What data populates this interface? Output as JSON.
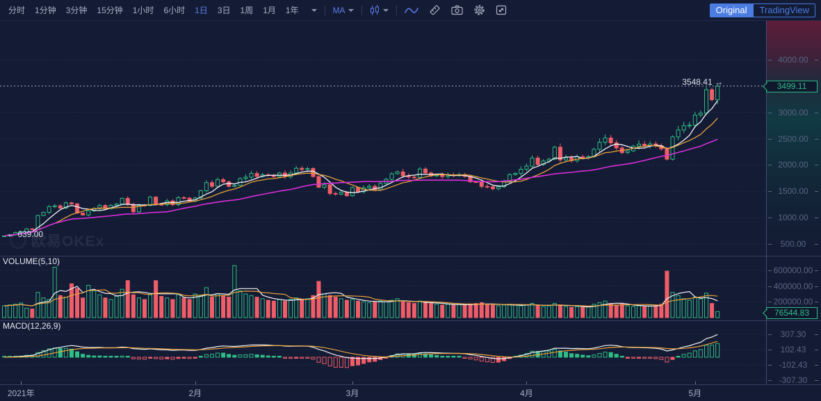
{
  "toolbar": {
    "intervals": [
      "分时",
      "1分钟",
      "3分钟",
      "15分钟",
      "1小时",
      "6小时",
      "1日",
      "3日",
      "1周",
      "1月",
      "1年"
    ],
    "selected_interval": "1日",
    "ma_label": "MA",
    "mode": {
      "original": "Original",
      "tradingview": "TradingView",
      "selected": "Original"
    },
    "icons": [
      "candle-type-icon",
      "line-chart-icon",
      "draw-tools-icon",
      "camera-icon",
      "gear-icon",
      "fullscreen-icon"
    ]
  },
  "main_chart": {
    "high_marker": "3548.41 →",
    "low_marker": "← 639.00",
    "current_price_label": "3499.11",
    "watermark": "欧易OKEx"
  },
  "volume_pane": {
    "label": "VOLUME(5,10)",
    "current_label": "76544.83"
  },
  "macd_pane": {
    "label": "MACD(12,26,9)"
  },
  "colors": {
    "bg": "#141b34",
    "up": "#2ebd85",
    "down": "#ee5d68",
    "ma5": "#f2f3f7",
    "ma10": "#e7a23b",
    "ma30": "#d92fd9",
    "accent_blue": "#4a7ce2",
    "badge_green": "#2ebd85",
    "grid": "#7d88a8",
    "price_line": "#aeb6c8"
  },
  "chart_data": {
    "type": "candlestick",
    "panes": [
      "price+MA",
      "volume+MA",
      "MACD"
    ],
    "x_axis_labels": [
      "2021年",
      "2月",
      "3月",
      "4月",
      "5月"
    ],
    "month_tick_indices": [
      3,
      34,
      62,
      93,
      123
    ],
    "price_axis_ticks": [
      4000,
      3000,
      2500,
      2000,
      1500,
      1000,
      500
    ],
    "volume_axis_ticks": [
      600000,
      400000,
      200000
    ],
    "macd_axis_ticks": [
      307.3,
      102.43,
      -102.43,
      -307.3
    ],
    "current_price": 3499.11,
    "high": 3548.41,
    "low": 639.0,
    "current_volume": 76544.83,
    "overlays": [
      "MA5",
      "MA10",
      "MA30"
    ],
    "volume_overlays": [
      "MA5",
      "MA10"
    ],
    "macd_params": [
      12,
      26,
      9
    ],
    "closes": [
      652,
      675,
      717,
      730,
      787,
      775,
      1040,
      1100,
      1208,
      1225,
      1183,
      1281,
      1262,
      1087,
      1050,
      1130,
      1170,
      1232,
      1171,
      1233,
      1258,
      1366,
      1252,
      1110,
      1235,
      1232,
      1390,
      1250,
      1247,
      1317,
      1246,
      1380,
      1370,
      1314,
      1374,
      1512,
      1665,
      1595,
      1722,
      1680,
      1594,
      1612,
      1744,
      1769,
      1840,
      1783,
      1815,
      1805,
      1779,
      1848,
      1778,
      1848,
      1938,
      1914,
      1933,
      1781,
      1578,
      1624,
      1459,
      1447,
      1480,
      1416,
      1570,
      1492,
      1567,
      1596,
      1531,
      1652,
      1727,
      1834,
      1870,
      1796,
      1771,
      1766,
      1924,
      1849,
      1792,
      1806,
      1779,
      1811,
      1804,
      1818,
      1784,
      1681,
      1679,
      1593,
      1587,
      1548,
      1587,
      1692,
      1817,
      1840,
      1919,
      1977,
      2133,
      2009,
      2076,
      2110,
      2339,
      2097,
      2136,
      2082,
      2157,
      2135,
      2157,
      2299,
      2432,
      2514,
      2422,
      2324,
      2236,
      2268,
      2357,
      2397,
      2360,
      2400,
      2367,
      2307,
      2110,
      2535,
      2666,
      2748,
      2757,
      2949,
      2985,
      3431,
      3241,
      3499.11
    ],
    "volumes": [
      150000,
      160000,
      170000,
      185000,
      120000,
      110000,
      320000,
      250000,
      230000,
      640000,
      280000,
      260000,
      430000,
      370000,
      250000,
      410000,
      340000,
      290000,
      250000,
      230000,
      270000,
      360000,
      470000,
      290000,
      250000,
      230000,
      290000,
      470000,
      270000,
      250000,
      230000,
      290000,
      250000,
      230000,
      300000,
      280000,
      380000,
      260000,
      300000,
      280000,
      260000,
      660000,
      340000,
      300000,
      280000,
      260000,
      240000,
      220000,
      210000,
      230000,
      210000,
      230000,
      250000,
      230000,
      240000,
      280000,
      460000,
      300000,
      280000,
      260000,
      240000,
      220000,
      230000,
      210000,
      200000,
      190000,
      200000,
      210000,
      200000,
      220000,
      240000,
      200000,
      190000,
      180000,
      210000,
      190000,
      180000,
      170000,
      160000,
      170000,
      160000,
      170000,
      160000,
      170000,
      180000,
      190000,
      170000,
      160000,
      150000,
      160000,
      170000,
      160000,
      150000,
      160000,
      180000,
      150000,
      140000,
      150000,
      180000,
      160000,
      140000,
      130000,
      140000,
      130000,
      140000,
      170000,
      190000,
      210000,
      180000,
      160000,
      170000,
      150000,
      140000,
      150000,
      140000,
      150000,
      160000,
      170000,
      590000,
      320000,
      280000,
      240000,
      220000,
      260000,
      240000,
      310000,
      180000,
      76544.83
    ]
  }
}
